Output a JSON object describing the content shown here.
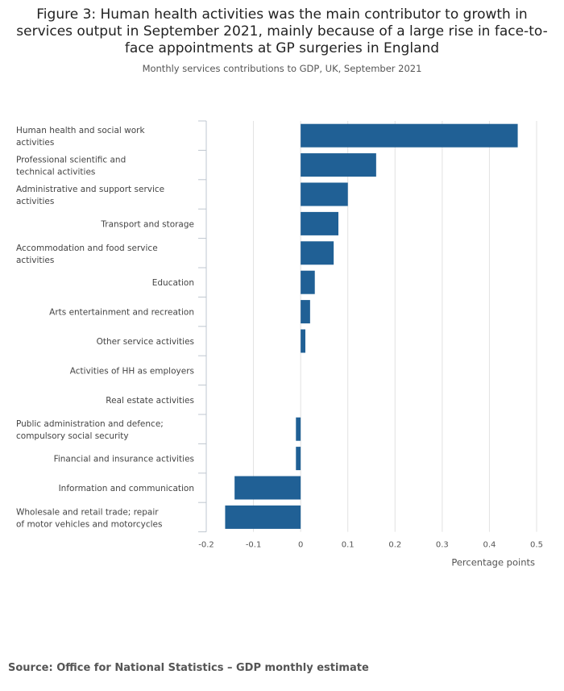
{
  "title": "Figure 3: Human health activities was the main contributor to growth in services output in September 2021, mainly because of a large rise in face-to-face appointments at GP surgeries in England",
  "subtitle": "Monthly services contributions to GDP, UK, September 2021",
  "source": "Source: Office for National Statistics – GDP monthly estimate",
  "colors": {
    "bar": "#206095",
    "grid": "#e2e2e2",
    "axis": "#bfc7d0"
  },
  "chart_data": {
    "type": "bar",
    "orientation": "horizontal",
    "title": "Figure 3: Human health activities was the main contributor to growth in services output in September 2021, mainly because of a large rise in face-to-face appointments at GP surgeries in England",
    "subtitle": "Monthly services contributions to GDP, UK, September 2021",
    "xlabel": "Percentage points",
    "ylabel": "",
    "xlim": [
      -0.2,
      0.5
    ],
    "xticks": [
      -0.2,
      -0.1,
      0,
      0.1,
      0.2,
      0.3,
      0.4,
      0.5
    ],
    "xtick_labels": [
      "-0.2",
      "-0.1",
      "0",
      "0.1",
      "0.2",
      "0.3",
      "0.4",
      "0.5"
    ],
    "grid": true,
    "legend": "none",
    "categories": [
      "Human health and social work activities",
      "Professional scientific and technical activities",
      "Administrative and support service activities",
      "Transport and storage",
      "Accommodation and food service activities",
      "Education",
      "Arts entertainment and recreation",
      "Other service activities",
      "Activities of HH as employers",
      "Real estate activities",
      "Public administration and defence; compulsory social security",
      "Financial and insurance activities",
      "Information and communication",
      "Wholesale and retail trade; repair of motor vehicles and motorcycles"
    ],
    "values": [
      0.46,
      0.16,
      0.1,
      0.08,
      0.07,
      0.03,
      0.02,
      0.01,
      0.0,
      0.0,
      -0.01,
      -0.01,
      -0.14,
      -0.16
    ]
  }
}
